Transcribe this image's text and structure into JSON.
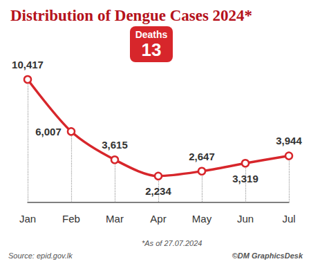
{
  "chart_data": {
    "type": "line",
    "title": "Distribution of Dengue Cases 2024*",
    "categories": [
      "Jan",
      "Feb",
      "Mar",
      "Apr",
      "May",
      "Jun",
      "Jul"
    ],
    "values": [
      10417,
      6007,
      3615,
      2234,
      2647,
      3319,
      3944
    ],
    "value_labels": [
      "10,417",
      "6,007",
      "3,615",
      "2,234",
      "2,647",
      "3,319",
      "3,944"
    ],
    "color": "#d7262b",
    "marker": "circle",
    "ylim": [
      0,
      11000
    ],
    "grid": false,
    "data_labels": true,
    "tick_labels": "x",
    "annotations": [
      {
        "label": "Deaths",
        "value": 13
      }
    ],
    "source": "Source: epid.gov.lk",
    "note": "*As of 27.07.2024",
    "credit": "©DM GraphicsDesk"
  }
}
